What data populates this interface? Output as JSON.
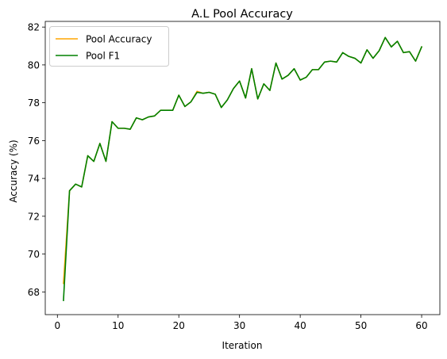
{
  "chart_data": {
    "type": "line",
    "title": "A.L Pool Accuracy",
    "xlabel": "Iteration",
    "ylabel": "Accuracy (%)",
    "xlim": [
      -2,
      63
    ],
    "ylim": [
      66.8,
      82.3
    ],
    "xticks": [
      "0",
      "10",
      "20",
      "30",
      "40",
      "50",
      "60"
    ],
    "yticks": [
      "68",
      "70",
      "72",
      "74",
      "76",
      "78",
      "80",
      "82"
    ],
    "grid": false,
    "legend_position": "upper-left",
    "x": [
      1,
      2,
      3,
      4,
      5,
      6,
      7,
      8,
      9,
      10,
      11,
      12,
      13,
      14,
      15,
      16,
      17,
      18,
      19,
      20,
      21,
      22,
      23,
      24,
      25,
      26,
      27,
      28,
      29,
      30,
      31,
      32,
      33,
      34,
      35,
      36,
      37,
      38,
      39,
      40,
      41,
      42,
      43,
      44,
      45,
      46,
      47,
      48,
      49,
      50,
      51,
      52,
      53,
      54,
      55,
      56,
      57,
      58,
      59,
      60
    ],
    "series": [
      {
        "name": "Pool Accuracy",
        "color": "#ffa500",
        "values": [
          68.45,
          73.35,
          73.7,
          73.55,
          75.2,
          74.9,
          75.85,
          74.9,
          77.0,
          76.65,
          76.65,
          76.6,
          77.2,
          77.1,
          77.25,
          77.3,
          77.6,
          77.6,
          77.6,
          78.4,
          77.8,
          78.05,
          78.6,
          78.5,
          78.55,
          78.45,
          77.75,
          78.15,
          78.75,
          79.15,
          78.25,
          79.8,
          78.2,
          79.0,
          78.65,
          80.1,
          79.25,
          79.45,
          79.8,
          79.2,
          79.35,
          79.75,
          79.75,
          80.15,
          80.2,
          80.15,
          80.65,
          80.45,
          80.35,
          80.1,
          80.8,
          80.35,
          80.75,
          81.45,
          80.95,
          81.25,
          80.65,
          80.7,
          80.2,
          80.95
        ]
      },
      {
        "name": "Pool F1",
        "color": "#008000",
        "values": [
          67.55,
          73.35,
          73.7,
          73.55,
          75.2,
          74.9,
          75.85,
          74.9,
          77.0,
          76.65,
          76.65,
          76.6,
          77.2,
          77.1,
          77.25,
          77.3,
          77.6,
          77.6,
          77.6,
          78.4,
          77.8,
          78.05,
          78.55,
          78.5,
          78.55,
          78.45,
          77.75,
          78.15,
          78.75,
          79.15,
          78.25,
          79.8,
          78.2,
          79.0,
          78.65,
          80.1,
          79.25,
          79.45,
          79.8,
          79.2,
          79.35,
          79.75,
          79.75,
          80.15,
          80.2,
          80.15,
          80.65,
          80.45,
          80.35,
          80.1,
          80.8,
          80.35,
          80.75,
          81.45,
          80.95,
          81.25,
          80.65,
          80.7,
          80.2,
          80.95
        ]
      }
    ]
  }
}
